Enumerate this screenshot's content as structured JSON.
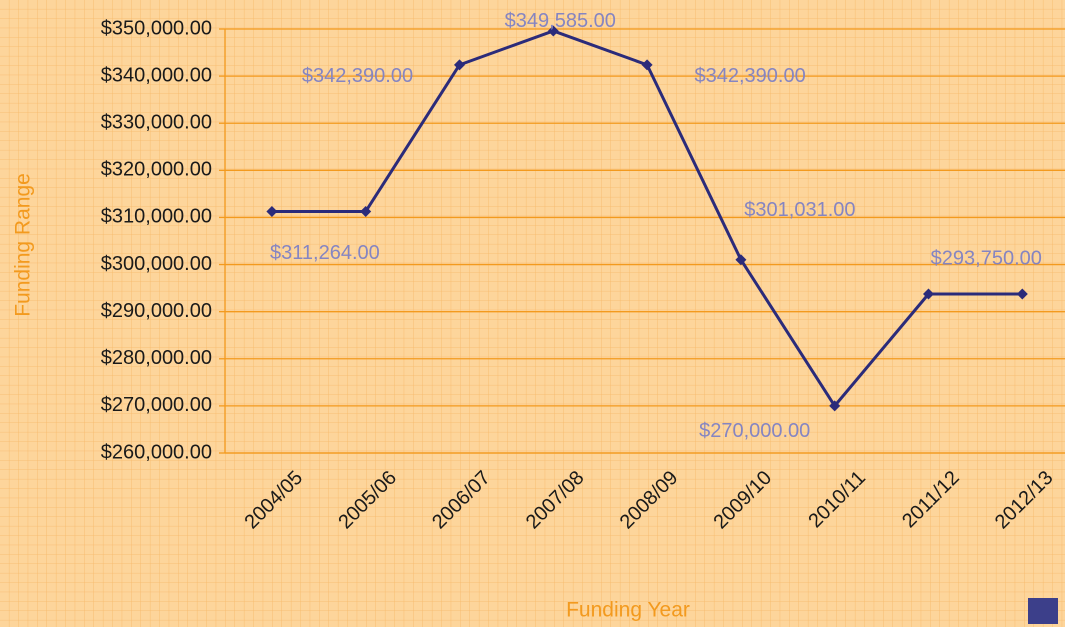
{
  "chart_data": {
    "type": "line",
    "y_label": "Funding Range",
    "x_label": "Funding Year",
    "categories": [
      "2004/05",
      "2005/06",
      "2006/07",
      "2007/08",
      "2008/09",
      "2009/10",
      "2010/11",
      "2011/12",
      "2012/13"
    ],
    "series": [
      {
        "color": "#2b2b7a",
        "values": [
          311264,
          311264,
          342390,
          349585,
          342390,
          301031,
          270000,
          293750,
          293750
        ],
        "value_labels": [
          "$311,264.00",
          null,
          "$342,390.00",
          "$349,585.00",
          "$342,390.00",
          "$301,031.00",
          "$270,000.00",
          null,
          "$293,750.00"
        ]
      }
    ],
    "ylim": [
      260000,
      350000
    ],
    "yticks": [
      {
        "value": 260000,
        "label": "$260,000.00"
      },
      {
        "value": 270000,
        "label": "$270,000.00"
      },
      {
        "value": 280000,
        "label": "$280,000.00"
      },
      {
        "value": 290000,
        "label": "$290,000.00"
      },
      {
        "value": 300000,
        "label": "$300,000.00"
      },
      {
        "value": 310000,
        "label": "$310,000.00"
      },
      {
        "value": 320000,
        "label": "$320,000.00"
      },
      {
        "value": 330000,
        "label": "$330,000.00"
      },
      {
        "value": 340000,
        "label": "$340,000.00"
      },
      {
        "value": 350000,
        "label": "$350,000.00"
      }
    ],
    "grid": true
  }
}
